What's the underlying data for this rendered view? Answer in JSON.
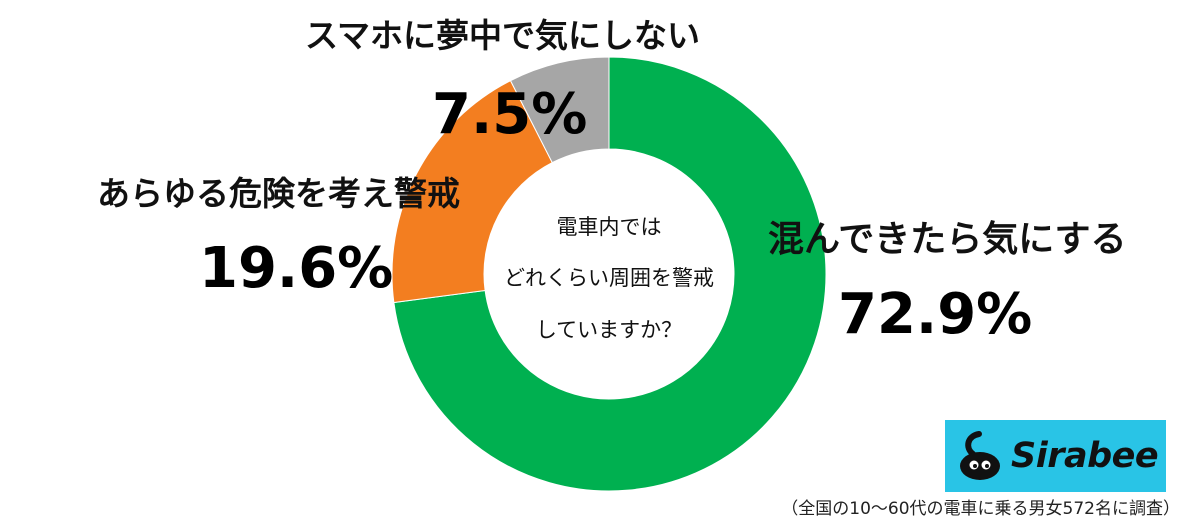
{
  "chart_data": {
    "type": "pie",
    "style": "donut",
    "slices": [
      {
        "label": "混んできたら気にする",
        "value": 72.9,
        "value_text": "72.9%",
        "color": "#00b050"
      },
      {
        "label": "あらゆる危険を考え警戒",
        "value": 19.6,
        "value_text": "19.6%",
        "color": "#f37e20"
      },
      {
        "label": "スマホに夢中で気にしない",
        "value": 7.5,
        "value_text": "7.5%",
        "color": "#a6a6a6"
      }
    ],
    "center_text": [
      "電車内では",
      "どれくらい周囲を警戒",
      "していますか？"
    ]
  },
  "brand": {
    "name": "Sirabee",
    "color": "#29c4e6"
  },
  "footnote": "（全国の10〜60代の電車に乗る男女572名に調査）"
}
